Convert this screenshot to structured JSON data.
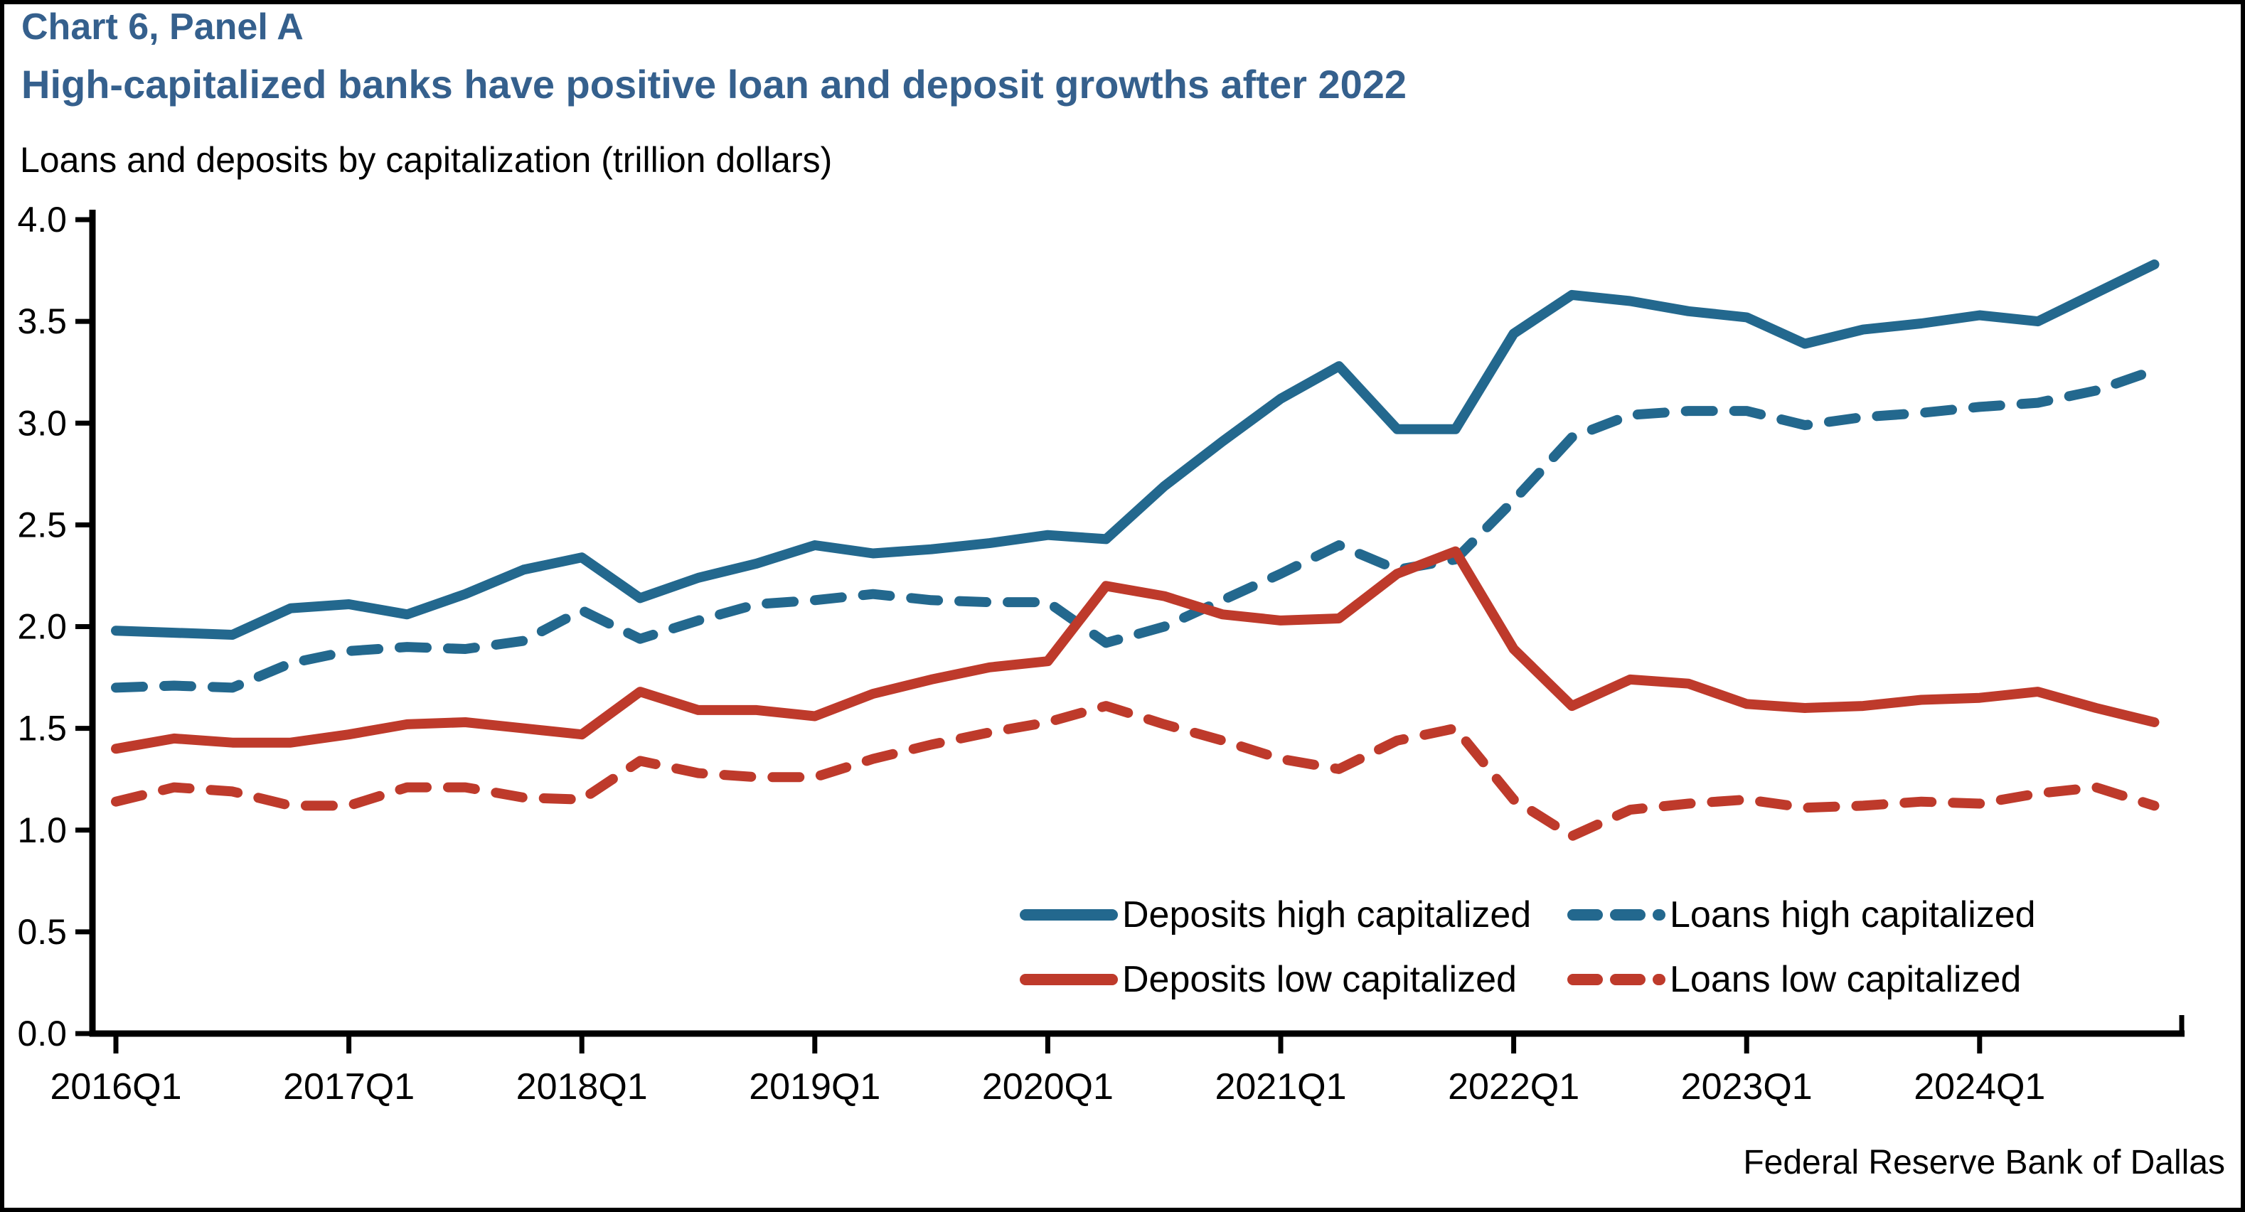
{
  "header": {
    "panel_label": "Chart 6, Panel A",
    "title": "High-capitalized banks have positive loan and deposit growths after 2022",
    "subtitle": "Loans and deposits by capitalization (trillion dollars)"
  },
  "footer": {
    "source": "Federal Reserve Bank of Dallas"
  },
  "colors": {
    "high_capitalized": "#23688E",
    "low_capitalized": "#BE3A2B",
    "title_blue": "#35608D",
    "axis_black": "#000000"
  },
  "chart_data": {
    "type": "line",
    "title": "Loans and deposits by capitalization (trillion dollars)",
    "xlabel": "",
    "ylabel": "trillion dollars",
    "ylim": [
      0.0,
      4.0
    ],
    "ytick_step": 0.5,
    "ytick_labels": [
      "0.0",
      "0.5",
      "1.0",
      "1.5",
      "2.0",
      "2.5",
      "3.0",
      "3.5",
      "4.0"
    ],
    "grid": false,
    "legend_position": "inside-bottom",
    "x": [
      "2016Q1",
      "2016Q2",
      "2016Q3",
      "2016Q4",
      "2017Q1",
      "2017Q2",
      "2017Q3",
      "2017Q4",
      "2018Q1",
      "2018Q2",
      "2018Q3",
      "2018Q4",
      "2019Q1",
      "2019Q2",
      "2019Q3",
      "2019Q4",
      "2020Q1",
      "2020Q2",
      "2020Q3",
      "2020Q4",
      "2021Q1",
      "2021Q2",
      "2021Q3",
      "2021Q4",
      "2022Q1",
      "2022Q2",
      "2022Q3",
      "2022Q4",
      "2023Q1",
      "2023Q2",
      "2023Q3",
      "2023Q4",
      "2024Q1",
      "2024Q2",
      "2024Q3",
      "2024Q4"
    ],
    "x_tick_labels": [
      "2016Q1",
      "2017Q1",
      "2018Q1",
      "2019Q1",
      "2020Q1",
      "2021Q1",
      "2022Q1",
      "2023Q1",
      "2024Q1"
    ],
    "series": [
      {
        "name": "Deposits high capitalized",
        "style": "solid",
        "color_key": "high_capitalized",
        "values": [
          1.98,
          1.97,
          1.96,
          2.09,
          2.11,
          2.06,
          2.16,
          2.28,
          2.34,
          2.14,
          2.24,
          2.31,
          2.4,
          2.36,
          2.38,
          2.41,
          2.45,
          2.43,
          2.69,
          2.91,
          3.12,
          3.28,
          2.97,
          2.97,
          3.44,
          3.63,
          3.6,
          3.55,
          3.52,
          3.39,
          3.46,
          3.49,
          3.53,
          3.5,
          3.64,
          3.78
        ]
      },
      {
        "name": "Loans high capitalized",
        "style": "dashed",
        "color_key": "high_capitalized",
        "values": [
          1.7,
          1.71,
          1.7,
          1.82,
          1.88,
          1.9,
          1.89,
          1.93,
          2.08,
          1.94,
          2.03,
          2.11,
          2.13,
          2.16,
          2.13,
          2.12,
          2.12,
          1.92,
          2.0,
          2.13,
          2.26,
          2.4,
          2.28,
          2.33,
          2.62,
          2.93,
          3.04,
          3.06,
          3.06,
          2.99,
          3.03,
          3.05,
          3.08,
          3.1,
          3.16,
          3.26
        ]
      },
      {
        "name": "Deposits low capitalized",
        "style": "solid",
        "color_key": "low_capitalized",
        "values": [
          1.4,
          1.45,
          1.43,
          1.43,
          1.47,
          1.52,
          1.53,
          1.5,
          1.47,
          1.68,
          1.59,
          1.59,
          1.56,
          1.67,
          1.74,
          1.8,
          1.83,
          2.2,
          2.15,
          2.06,
          2.03,
          2.04,
          2.26,
          2.37,
          1.89,
          1.61,
          1.74,
          1.72,
          1.62,
          1.6,
          1.61,
          1.64,
          1.65,
          1.68,
          1.6,
          1.53
        ]
      },
      {
        "name": "Loans low capitalized",
        "style": "dashed",
        "color_key": "low_capitalized",
        "values": [
          1.14,
          1.21,
          1.19,
          1.12,
          1.12,
          1.21,
          1.21,
          1.16,
          1.15,
          1.34,
          1.28,
          1.26,
          1.26,
          1.35,
          1.42,
          1.48,
          1.53,
          1.61,
          1.52,
          1.44,
          1.35,
          1.3,
          1.44,
          1.5,
          1.15,
          0.97,
          1.1,
          1.13,
          1.15,
          1.11,
          1.12,
          1.14,
          1.13,
          1.18,
          1.21,
          1.12
        ]
      }
    ],
    "legend": [
      {
        "label": "Deposits high capitalized",
        "row": 0,
        "col": 0
      },
      {
        "label": "Loans high capitalized",
        "row": 0,
        "col": 1
      },
      {
        "label": "Deposits low capitalized",
        "row": 1,
        "col": 0
      },
      {
        "label": "Loans low capitalized",
        "row": 1,
        "col": 1
      }
    ]
  }
}
